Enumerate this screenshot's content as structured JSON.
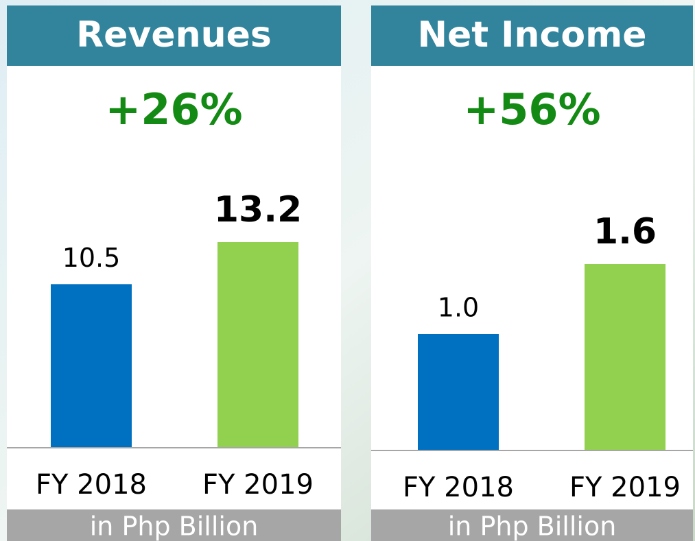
{
  "chart_data": [
    {
      "type": "bar",
      "title": "Revenues",
      "annotation": "+26%",
      "note": "in Php Billion",
      "categories": [
        "FY 2018",
        "FY 2019"
      ],
      "values": [
        10.5,
        13.2
      ],
      "colors": [
        "#0070c0",
        "#92d050"
      ]
    },
    {
      "type": "bar",
      "title": "Net Income",
      "annotation": "+56%",
      "note": "in Php Billion",
      "categories": [
        "FY 2018",
        "FY 2019"
      ],
      "values": [
        1.0,
        1.6
      ],
      "value_labels": [
        "1.0",
        "1.6"
      ],
      "colors": [
        "#0070c0",
        "#92d050"
      ]
    }
  ]
}
